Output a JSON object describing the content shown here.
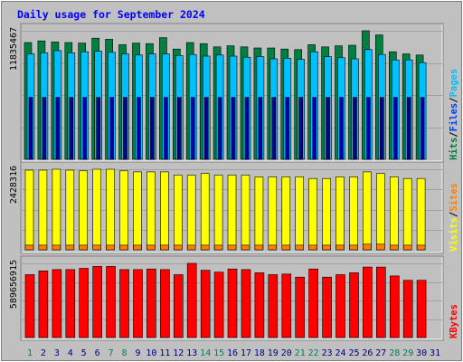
{
  "chart_data": {
    "type": "bar",
    "title": "Daily usage for September 2024",
    "categories": [
      "1",
      "2",
      "3",
      "4",
      "5",
      "6",
      "7",
      "8",
      "9",
      "10",
      "11",
      "12",
      "13",
      "14",
      "15",
      "16",
      "17",
      "18",
      "19",
      "20",
      "21",
      "22",
      "23",
      "24",
      "25",
      "26",
      "27",
      "28",
      "29",
      "30",
      "31"
    ],
    "weekend_days": [
      "1",
      "7",
      "8",
      "14",
      "15",
      "21",
      "22",
      "28",
      "29"
    ],
    "colors": {
      "background": "#c0c0c0",
      "title": "#0000ff",
      "hits": "#008040",
      "files": "#00c0ff",
      "pages": "#00c0ff",
      "visits": "#ffff00",
      "sites": "#ff8000",
      "kbytes": "#ff0000",
      "day_normal": "#000080",
      "day_weekend": "#00805c"
    },
    "panels": [
      {
        "id": "hits-files-pages",
        "ymax_label": "11835467",
        "ymax": 11835467,
        "legend": [
          {
            "text": "Pages",
            "color": "#00c0ff"
          },
          {
            "text": "/",
            "color": "#000000"
          },
          {
            "text": "Files",
            "color": "#0040ff"
          },
          {
            "text": "/",
            "color": "#000000"
          },
          {
            "text": "Hits",
            "color": "#008040"
          }
        ],
        "series": [
          {
            "name": "Hits",
            "values": [
              10750000,
              10900000,
              10800000,
              10750000,
              10700000,
              11150000,
              11050000,
              10550000,
              10700000,
              10650000,
              11200000,
              10150000,
              10750000,
              10650000,
              10350000,
              10450000,
              10350000,
              10250000,
              10250000,
              10150000,
              10100000,
              10550000,
              10350000,
              10450000,
              10500000,
              11835467,
              11450000,
              9900000,
              9700000,
              9600000
            ]
          },
          {
            "name": "Files",
            "values": [
              9700000,
              9800000,
              10000000,
              9800000,
              9900000,
              9950000,
              9850000,
              9700000,
              9600000,
              9700000,
              9700000,
              9550000,
              9650000,
              9500000,
              9600000,
              9500000,
              9400000,
              9450000,
              9250000,
              9300000,
              9200000,
              9900000,
              9450000,
              9350000,
              9250000,
              10100000,
              9650000,
              9150000,
              9150000,
              8900000
            ]
          },
          {
            "name": "Pages",
            "values": [
              5700000,
              5700000,
              5700000,
              5700000,
              5700000,
              5700000,
              5700000,
              5700000,
              5700000,
              5700000,
              5700000,
              5700000,
              5700000,
              5700000,
              5700000,
              5700000,
              5700000,
              5700000,
              5700000,
              5700000,
              5700000,
              5700000,
              5700000,
              5700000,
              5700000,
              5700000,
              5700000,
              5700000,
              5700000,
              5700000
            ]
          }
        ]
      },
      {
        "id": "visits-sites",
        "ymax_label": "2428316",
        "ymax": 2428316,
        "legend": [
          {
            "text": "Sites",
            "color": "#ff8000"
          },
          {
            "text": "/",
            "color": "#000000"
          },
          {
            "text": "Visits",
            "color": "#ffff00"
          }
        ],
        "series": [
          {
            "name": "Visits",
            "values": [
              2400000,
              2400000,
              2428316,
              2400000,
              2380000,
              2428316,
              2428316,
              2380000,
              2350000,
              2350000,
              2350000,
              2250000,
              2250000,
              2300000,
              2250000,
              2250000,
              2250000,
              2200000,
              2200000,
              2200000,
              2200000,
              2150000,
              2150000,
              2200000,
              2200000,
              2350000,
              2300000,
              2200000,
              2150000,
              2150000
            ]
          },
          {
            "name": "Sites",
            "values": [
              140000,
              140000,
              140000,
              140000,
              140000,
              140000,
              140000,
              140000,
              140000,
              140000,
              140000,
              140000,
              140000,
              140000,
              140000,
              140000,
              140000,
              140000,
              140000,
              140000,
              140000,
              140000,
              140000,
              140000,
              140000,
              170000,
              170000,
              140000,
              140000,
              140000
            ]
          }
        ]
      },
      {
        "id": "kbytes",
        "ymax_label": "589656915",
        "ymax": 589656915,
        "legend": [
          {
            "text": "KBytes",
            "color": "#ff0000"
          }
        ],
        "series": [
          {
            "name": "KBytes",
            "values": [
              500000000,
              530000000,
              540000000,
              540000000,
              550000000,
              565000000,
              565000000,
              540000000,
              540000000,
              545000000,
              540000000,
              500000000,
              589656915,
              535000000,
              520000000,
              545000000,
              540000000,
              515000000,
              500000000,
              505000000,
              480000000,
              545000000,
              480000000,
              500000000,
              515000000,
              560000000,
              560000000,
              490000000,
              455000000,
              455000000
            ]
          }
        ]
      }
    ]
  }
}
